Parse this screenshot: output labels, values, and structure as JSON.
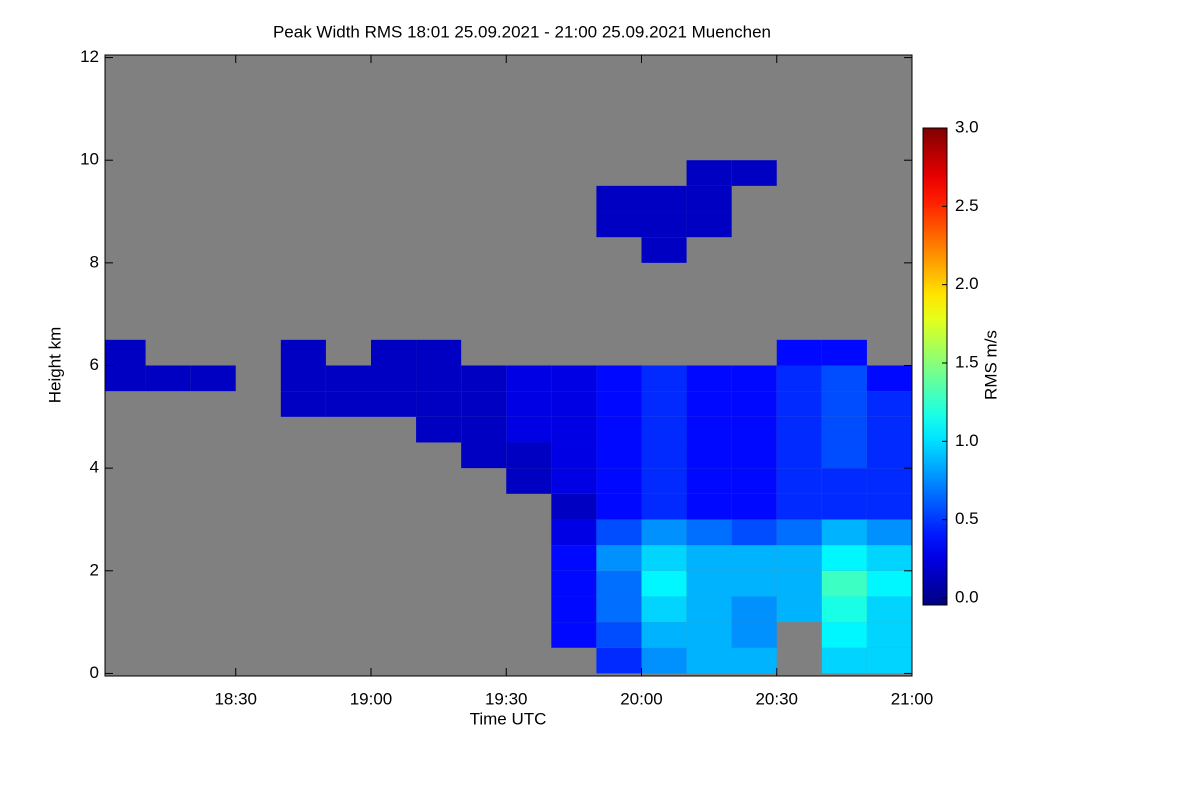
{
  "chart_data": {
    "type": "heatmap",
    "title": "Peak Width RMS   18:01 25.09.2021 - 21:00 25.09.2021 Muenchen",
    "x_label": "Time UTC",
    "y_label": "Height km",
    "colorbar_label": "RMS m/s",
    "colormap": "jet",
    "missing_color": "#808080",
    "xlim": [
      "18:01",
      "21:00"
    ],
    "xticks": [
      "18:30",
      "19:00",
      "19:30",
      "20:00",
      "20:30",
      "21:00"
    ],
    "ylim": [
      -0.05,
      12.05
    ],
    "yticks": [
      0,
      2,
      4,
      6,
      8,
      10,
      12
    ],
    "clim": [
      0,
      3
    ],
    "cticks": [
      {
        "value": 0,
        "label": "0.0"
      },
      {
        "value": 0.5,
        "label": "0.5"
      },
      {
        "value": 1,
        "label": "1.0"
      },
      {
        "value": 1.5,
        "label": "1.5"
      },
      {
        "value": 2,
        "label": "2.0"
      },
      {
        "value": 2.5,
        "label": "2.5"
      },
      {
        "value": 3,
        "label": "3.0"
      }
    ],
    "x_bins": [
      "18:01",
      "18:10",
      "18:20",
      "18:30",
      "18:40",
      "18:50",
      "19:00",
      "19:10",
      "19:20",
      "19:30",
      "19:40",
      "19:50",
      "20:00",
      "20:10",
      "20:20",
      "20:30",
      "20:40",
      "20:50",
      "21:00"
    ],
    "y_bins": [
      0,
      0.5,
      1,
      1.5,
      2,
      2.5,
      3,
      3.5,
      4,
      4.5,
      5,
      5.5,
      6,
      6.5,
      7,
      7.5,
      8,
      8.5,
      9,
      9.5,
      10
    ],
    "z": [
      [
        null,
        null,
        null,
        null,
        null,
        null,
        null,
        null,
        null,
        null,
        null,
        0.5,
        0.8,
        0.9,
        0.9,
        null,
        1.0,
        1.0
      ],
      [
        null,
        null,
        null,
        null,
        null,
        null,
        null,
        null,
        null,
        null,
        0.4,
        0.6,
        0.9,
        0.9,
        0.8,
        null,
        1.1,
        1.0
      ],
      [
        null,
        null,
        null,
        null,
        null,
        null,
        null,
        null,
        null,
        null,
        0.4,
        0.7,
        1.0,
        0.9,
        0.8,
        0.9,
        1.2,
        1.0
      ],
      [
        null,
        null,
        null,
        null,
        null,
        null,
        null,
        null,
        null,
        null,
        0.4,
        0.7,
        1.1,
        0.9,
        0.9,
        0.9,
        1.3,
        1.1
      ],
      [
        null,
        null,
        null,
        null,
        null,
        null,
        null,
        null,
        null,
        null,
        0.4,
        0.8,
        1.0,
        0.9,
        0.9,
        0.9,
        1.1,
        1.0
      ],
      [
        null,
        null,
        null,
        null,
        null,
        null,
        null,
        null,
        null,
        null,
        0.3,
        0.6,
        0.8,
        0.7,
        0.6,
        0.7,
        0.9,
        0.8
      ],
      [
        null,
        null,
        null,
        null,
        null,
        null,
        null,
        null,
        null,
        null,
        0.2,
        0.4,
        0.5,
        0.4,
        0.4,
        0.5,
        0.5,
        0.5
      ],
      [
        null,
        null,
        null,
        null,
        null,
        null,
        null,
        null,
        null,
        0.2,
        0.3,
        0.4,
        0.5,
        0.4,
        0.4,
        0.5,
        0.5,
        0.5
      ],
      [
        null,
        null,
        null,
        null,
        null,
        null,
        null,
        null,
        0.2,
        0.2,
        0.3,
        0.4,
        0.5,
        0.4,
        0.4,
        0.5,
        0.6,
        0.5
      ],
      [
        null,
        null,
        null,
        null,
        null,
        null,
        null,
        0.2,
        0.2,
        0.3,
        0.3,
        0.4,
        0.5,
        0.4,
        0.4,
        0.5,
        0.6,
        0.5
      ],
      [
        null,
        null,
        null,
        null,
        0.2,
        0.2,
        0.2,
        0.2,
        0.2,
        0.3,
        0.3,
        0.4,
        0.5,
        0.4,
        0.4,
        0.5,
        0.6,
        0.5
      ],
      [
        0.2,
        0.2,
        0.2,
        null,
        0.2,
        0.2,
        0.2,
        0.2,
        0.2,
        0.3,
        0.3,
        0.4,
        0.5,
        0.4,
        0.4,
        0.5,
        0.6,
        0.4
      ],
      [
        0.2,
        null,
        null,
        null,
        0.2,
        null,
        0.2,
        0.2,
        null,
        null,
        null,
        null,
        null,
        null,
        null,
        0.4,
        0.4,
        null
      ],
      [
        null,
        null,
        null,
        null,
        null,
        null,
        null,
        null,
        null,
        null,
        null,
        null,
        null,
        null,
        null,
        null,
        null,
        null
      ],
      [
        null,
        null,
        null,
        null,
        null,
        null,
        null,
        null,
        null,
        null,
        null,
        null,
        null,
        null,
        null,
        null,
        null,
        null
      ],
      [
        null,
        null,
        null,
        null,
        null,
        null,
        null,
        null,
        null,
        null,
        null,
        null,
        null,
        null,
        null,
        null,
        null,
        null
      ],
      [
        null,
        null,
        null,
        null,
        null,
        null,
        null,
        null,
        null,
        null,
        null,
        null,
        0.2,
        null,
        null,
        null,
        null,
        null
      ],
      [
        null,
        null,
        null,
        null,
        null,
        null,
        null,
        null,
        null,
        null,
        null,
        0.2,
        0.2,
        0.2,
        null,
        null,
        null,
        null
      ],
      [
        null,
        null,
        null,
        null,
        null,
        null,
        null,
        null,
        null,
        null,
        null,
        0.2,
        0.2,
        0.2,
        null,
        null,
        null,
        null
      ],
      [
        null,
        null,
        null,
        null,
        null,
        null,
        null,
        null,
        null,
        null,
        null,
        null,
        null,
        0.2,
        0.2,
        null,
        null,
        null
      ]
    ]
  }
}
